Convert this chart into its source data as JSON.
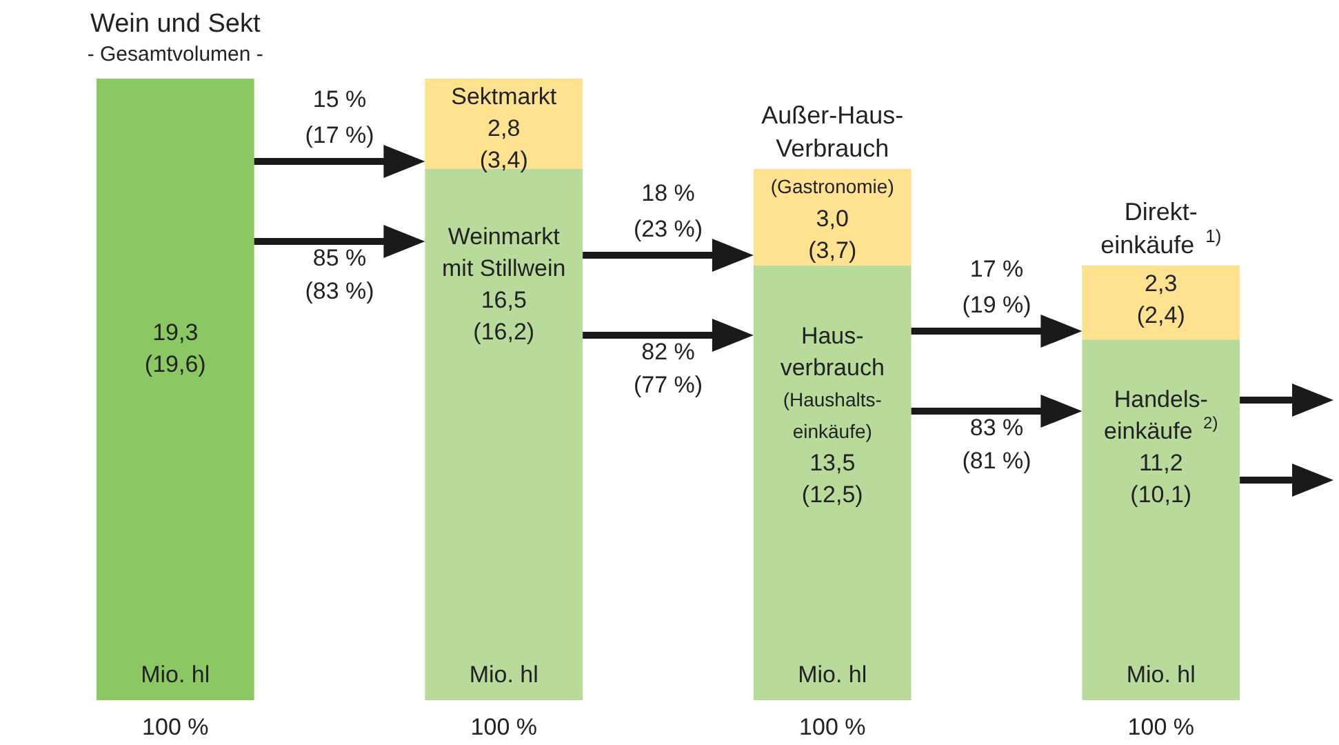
{
  "chart_data": {
    "type": "bar",
    "stacked": true,
    "tick_labels": "x",
    "ylim": [
      0,
      19.3
    ],
    "categories": [
      "100 %",
      "100 %",
      "100 %",
      "100 %"
    ],
    "series": [
      {
        "colors": [
          "#8bc863",
          "#b8da9a",
          "#b8da9a",
          "#b8da9a"
        ],
        "values": [
          19.3,
          16.5,
          13.5,
          11.2
        ],
        "value_labels": [
          "19,3\n(19,6)",
          "Weinmarkt\nmit Stillwein\n16,5\n(16,2)",
          "Haus-\nverbrauch\n(Haushalts-\neinkäufe)\n13,5\n(12,5)",
          "Handels-\neinkäufe $^{2)}$\n11,2\n(10,1)"
        ]
      },
      {
        "color": "#fee290",
        "values": [
          null,
          2.8,
          3.0,
          2.3
        ],
        "value_labels": [
          null,
          "Sektmarkt\n2,8\n(3,4)",
          "(Gastronomie)\n3,0\n(3,7)",
          "2,3\n(2,4)"
        ]
      }
    ],
    "annotations": [
      "Wein und Sekt",
      "- Gesamtvolumen -",
      "Außer-Haus-\nVerbrauch",
      "Direkt-\neinkäufe $^{1)}$",
      "15 %\n(17 %)",
      "85 %\n(83 %)",
      "18 %\n(23 %)",
      "82 %\n(77 %)",
      "17 %\n(19 %)",
      "83 %\n(81 %)",
      "Mio. hl",
      "Mio. hl",
      "Mio. hl",
      "Mio. hl"
    ]
  }
}
